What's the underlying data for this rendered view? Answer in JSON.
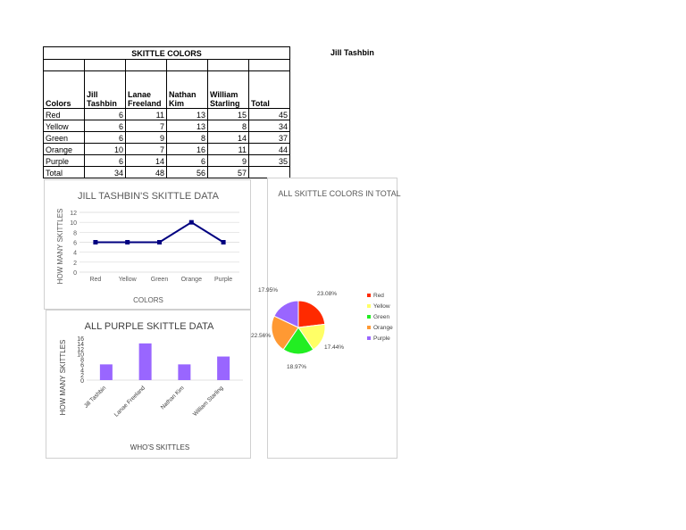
{
  "author": "Jill Tashbin",
  "table": {
    "title": "SKITTLE COLORS",
    "headers": [
      "Colors",
      "Jill Tashbin",
      "Lanae Freeland",
      "Nathan Kim",
      "William Starling",
      "Total"
    ],
    "rows": [
      [
        "Red",
        "6",
        "11",
        "13",
        "15",
        "45"
      ],
      [
        "Yellow",
        "6",
        "7",
        "13",
        "8",
        "34"
      ],
      [
        "Green",
        "6",
        "9",
        "8",
        "14",
        "37"
      ],
      [
        "Orange",
        "10",
        "7",
        "16",
        "11",
        "44"
      ],
      [
        "Purple",
        "6",
        "14",
        "6",
        "9",
        "35"
      ]
    ],
    "total_row": [
      "Total",
      "34",
      "48",
      "56",
      "57",
      ""
    ]
  },
  "chart_data": [
    {
      "type": "line",
      "title": "JILL TASHBIN'S SKITTLE DATA",
      "xlabel": "COLORS",
      "ylabel": "HOW MANY SKITTLES",
      "categories": [
        "Red",
        "Yellow",
        "Green",
        "Orange",
        "Purple"
      ],
      "values": [
        6,
        6,
        6,
        10,
        6
      ],
      "ylim": [
        0,
        12
      ],
      "yticks": [
        0,
        2,
        4,
        6,
        8,
        10,
        12
      ],
      "grid": true,
      "color": "#000080"
    },
    {
      "type": "pie",
      "title": "ALL SKITTLE COLORS IN TOTAL",
      "categories": [
        "Red",
        "Yellow",
        "Green",
        "Orange",
        "Purple"
      ],
      "values": [
        45,
        34,
        37,
        44,
        35
      ],
      "labels": [
        "23.08%",
        "17.44%",
        "18.97%",
        "22.56%",
        "17.95%"
      ],
      "colors": [
        "#ff2a00",
        "#ffff66",
        "#22ee22",
        "#ff9933",
        "#9966ff"
      ],
      "legend": "right"
    },
    {
      "type": "bar",
      "title": "ALL PURPLE SKITTLE DATA",
      "xlabel": "WHO'S SKITTLES",
      "ylabel": "HOW MANY SKITTLES",
      "categories": [
        "Jill Tashbin",
        "Lanae Freeland",
        "Nathan Kim",
        "William Starling"
      ],
      "values": [
        6,
        14,
        6,
        9
      ],
      "ylim": [
        0,
        16
      ],
      "yticks": [
        0,
        2,
        4,
        6,
        8,
        10,
        12,
        14,
        16
      ],
      "grid": false,
      "color": "#9966ff"
    }
  ]
}
